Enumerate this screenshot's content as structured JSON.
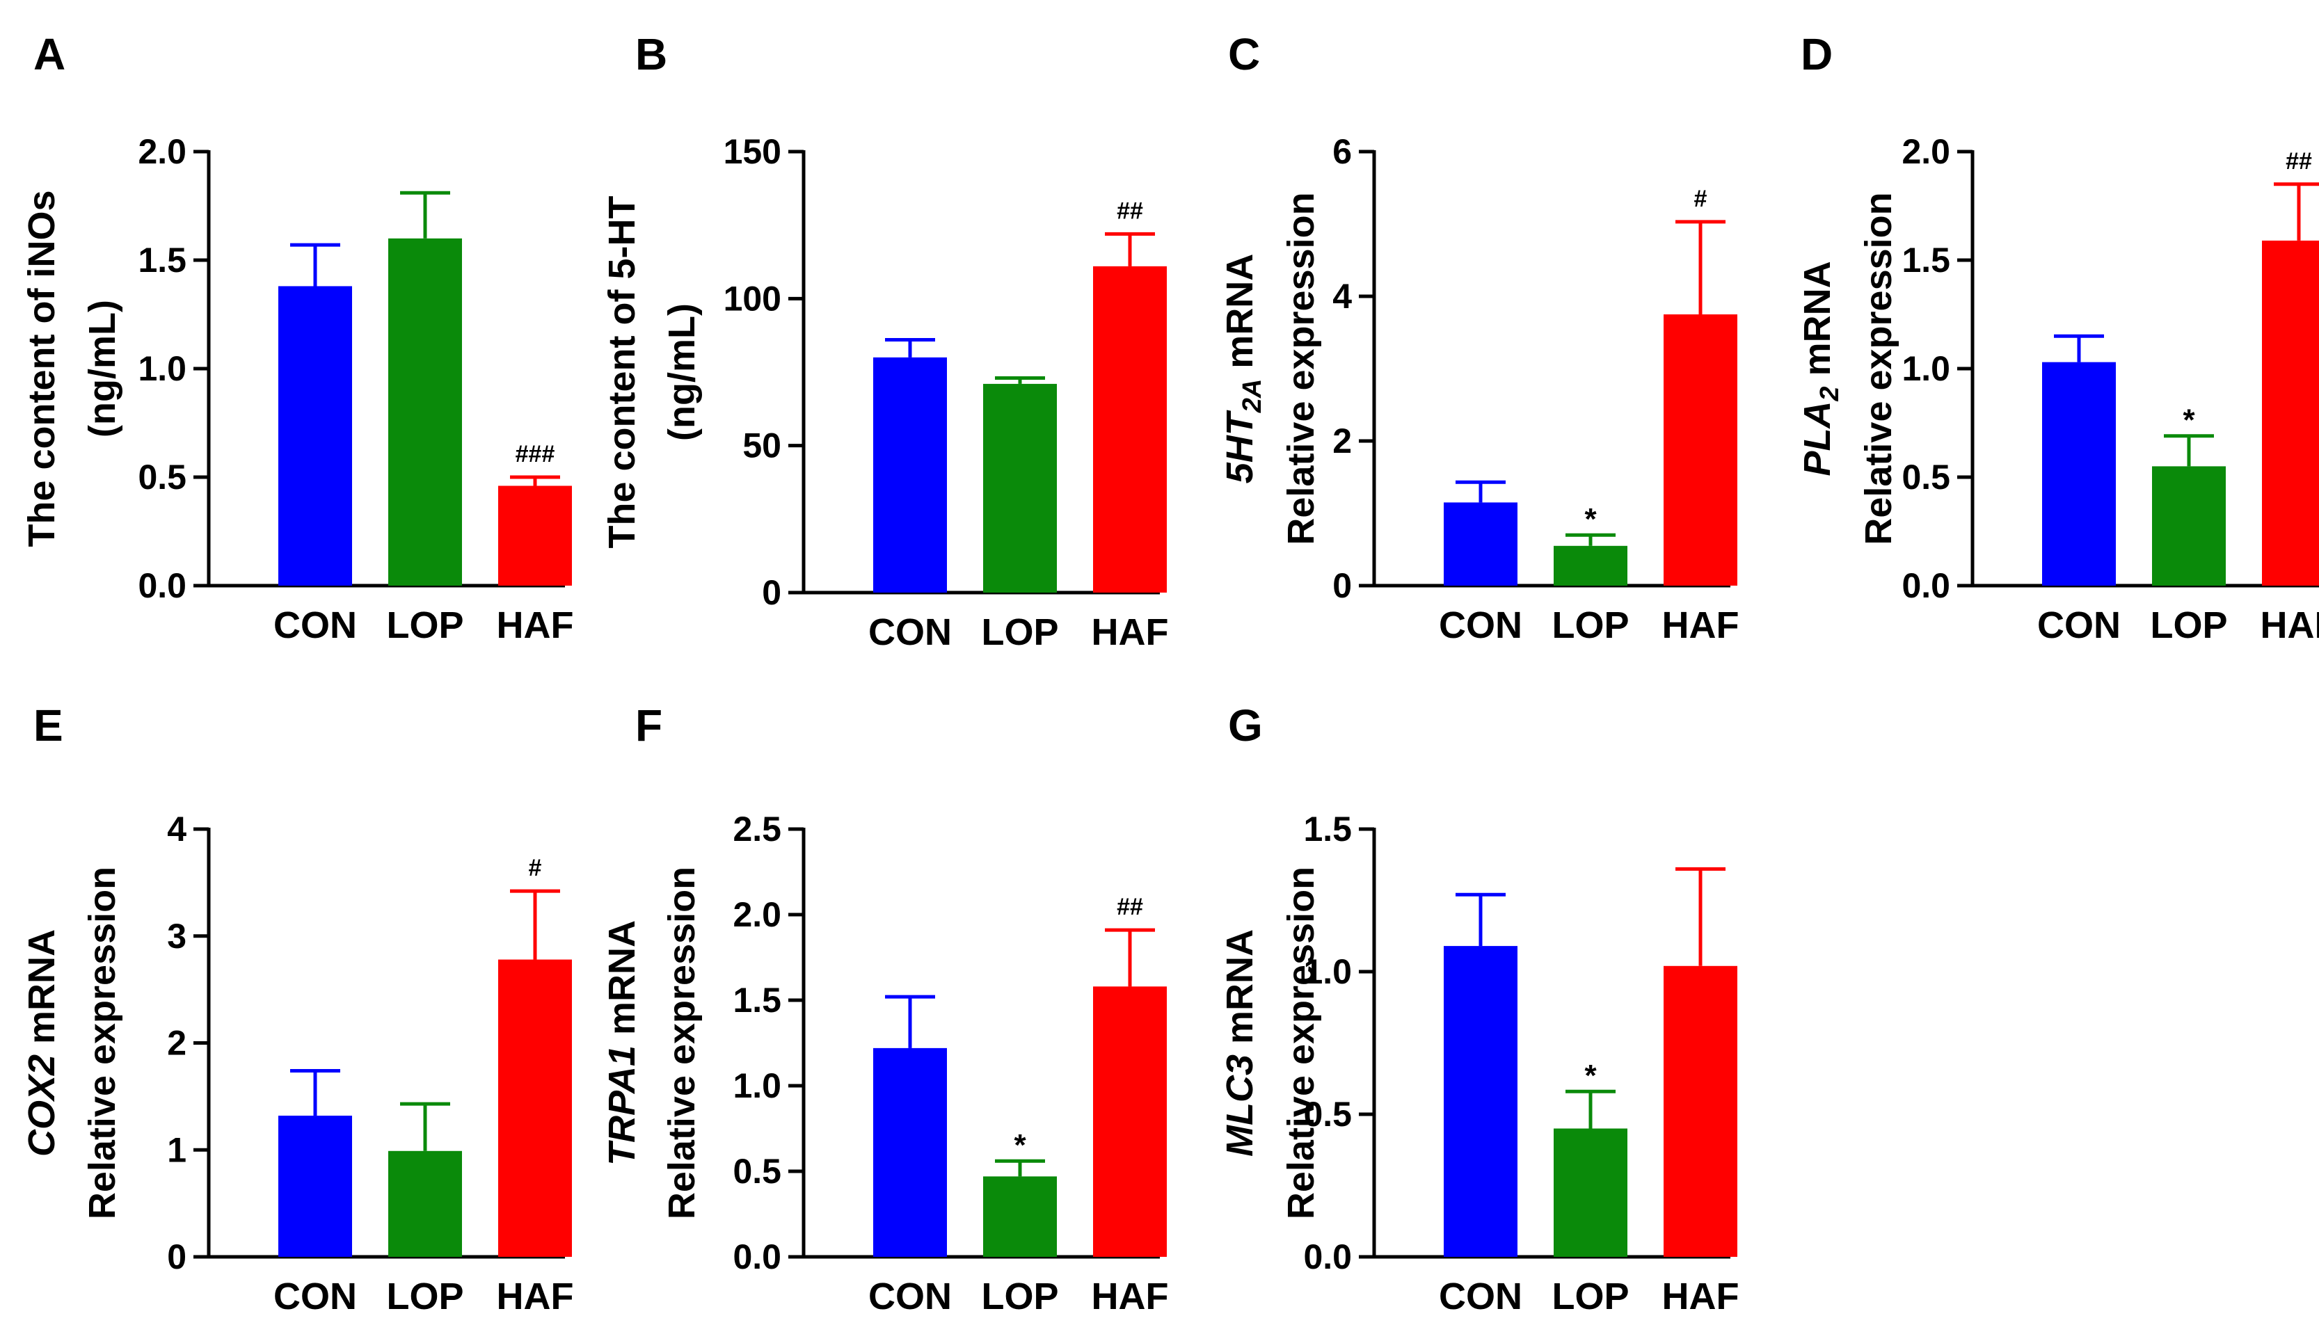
{
  "colors": {
    "CON": "#0000ff",
    "LOP": "#0a8a0a",
    "HAF": "#ff0000",
    "axis": "#000000"
  },
  "chart_data": [
    {
      "panel": "A",
      "type": "bar",
      "categories": [
        "CON",
        "LOP",
        "HAF"
      ],
      "values": [
        1.38,
        1.6,
        0.46
      ],
      "errors": [
        0.19,
        0.21,
        0.04
      ],
      "annotations": [
        "",
        "",
        "###"
      ],
      "ylabel_lines": [
        {
          "parts": [
            {
              "t": "The content of iNOs"
            }
          ]
        },
        {
          "parts": [
            {
              "t": "(ng/mL)"
            }
          ]
        }
      ],
      "ylim": [
        0,
        2.0
      ],
      "yticks": [
        0.0,
        0.5,
        1.0,
        1.5,
        2.0
      ],
      "ytick_labels": [
        "0.0",
        "0.5",
        "1.0",
        "1.5",
        "2.0"
      ]
    },
    {
      "panel": "B",
      "type": "bar",
      "categories": [
        "CON",
        "LOP",
        "HAF"
      ],
      "values": [
        80,
        71,
        111
      ],
      "errors": [
        6,
        2,
        11
      ],
      "annotations": [
        "",
        "",
        "##"
      ],
      "ylabel_lines": [
        {
          "parts": [
            {
              "t": "The content of 5-HT"
            }
          ]
        },
        {
          "parts": [
            {
              "t": "(ng/mL)"
            }
          ]
        }
      ],
      "ylim": [
        0,
        150
      ],
      "yticks": [
        0,
        50,
        100,
        150
      ],
      "ytick_labels": [
        "0",
        "50",
        "100",
        "150"
      ]
    },
    {
      "panel": "C",
      "type": "bar",
      "categories": [
        "CON",
        "LOP",
        "HAF"
      ],
      "values": [
        1.15,
        0.55,
        3.75
      ],
      "errors": [
        0.28,
        0.15,
        1.28
      ],
      "annotations": [
        "",
        "*",
        "#"
      ],
      "ylabel_lines": [
        {
          "parts": [
            {
              "t": "5HT",
              "i": true
            },
            {
              "t": "2A",
              "i": true,
              "sub": true
            },
            {
              "t": " mRNA"
            }
          ]
        },
        {
          "parts": [
            {
              "t": "Relative expression"
            }
          ]
        }
      ],
      "ylim": [
        0,
        6
      ],
      "yticks": [
        0,
        2,
        4,
        6
      ],
      "ytick_labels": [
        "0",
        "2",
        "4",
        "6"
      ]
    },
    {
      "panel": "D",
      "type": "bar",
      "categories": [
        "CON",
        "LOP",
        "HAF"
      ],
      "values": [
        1.03,
        0.55,
        1.59
      ],
      "errors": [
        0.12,
        0.14,
        0.26
      ],
      "annotations": [
        "",
        "*",
        "##"
      ],
      "ylabel_lines": [
        {
          "parts": [
            {
              "t": "PLA",
              "i": true
            },
            {
              "t": "2",
              "i": true,
              "sub": true
            },
            {
              "t": " mRNA"
            }
          ]
        },
        {
          "parts": [
            {
              "t": "Relative expression"
            }
          ]
        }
      ],
      "ylim": [
        0,
        2.0
      ],
      "yticks": [
        0.0,
        0.5,
        1.0,
        1.5,
        2.0
      ],
      "ytick_labels": [
        "0.0",
        "0.5",
        "1.0",
        "1.5",
        "2.0"
      ]
    },
    {
      "panel": "E",
      "type": "bar",
      "categories": [
        "CON",
        "LOP",
        "HAF"
      ],
      "values": [
        1.32,
        0.99,
        2.78
      ],
      "errors": [
        0.42,
        0.44,
        0.64
      ],
      "annotations": [
        "",
        "",
        "#"
      ],
      "ylabel_lines": [
        {
          "parts": [
            {
              "t": "COX2",
              "i": true
            },
            {
              "t": " mRNA"
            }
          ]
        },
        {
          "parts": [
            {
              "t": "Relative expression"
            }
          ]
        }
      ],
      "ylim": [
        0,
        4
      ],
      "yticks": [
        0,
        1,
        2,
        3,
        4
      ],
      "ytick_labels": [
        "0",
        "1",
        "2",
        "3",
        "4"
      ]
    },
    {
      "panel": "F",
      "type": "bar",
      "categories": [
        "CON",
        "LOP",
        "HAF"
      ],
      "values": [
        1.22,
        0.47,
        1.58
      ],
      "errors": [
        0.3,
        0.09,
        0.33
      ],
      "annotations": [
        "",
        "*",
        "##"
      ],
      "ylabel_lines": [
        {
          "parts": [
            {
              "t": "TRPA1",
              "i": true
            },
            {
              "t": " mRNA"
            }
          ]
        },
        {
          "parts": [
            {
              "t": "Relative expression"
            }
          ]
        }
      ],
      "ylim": [
        0,
        2.5
      ],
      "yticks": [
        0.0,
        0.5,
        1.0,
        1.5,
        2.0,
        2.5
      ],
      "ytick_labels": [
        "0.0",
        "0.5",
        "1.0",
        "1.5",
        "2.0",
        "2.5"
      ]
    },
    {
      "panel": "G",
      "type": "bar",
      "categories": [
        "CON",
        "LOP",
        "HAF"
      ],
      "values": [
        1.09,
        0.45,
        1.02
      ],
      "errors": [
        0.18,
        0.13,
        0.34
      ],
      "annotations": [
        "",
        "*",
        ""
      ],
      "ylabel_lines": [
        {
          "parts": [
            {
              "t": "MLC3",
              "i": true
            },
            {
              "t": " mRNA"
            }
          ]
        },
        {
          "parts": [
            {
              "t": "Relative expression"
            }
          ]
        }
      ],
      "ylim": [
        0,
        1.5
      ],
      "yticks": [
        0.0,
        0.5,
        1.0,
        1.5
      ],
      "ytick_labels": [
        "0.0",
        "0.5",
        "1.0",
        "1.5"
      ]
    }
  ]
}
